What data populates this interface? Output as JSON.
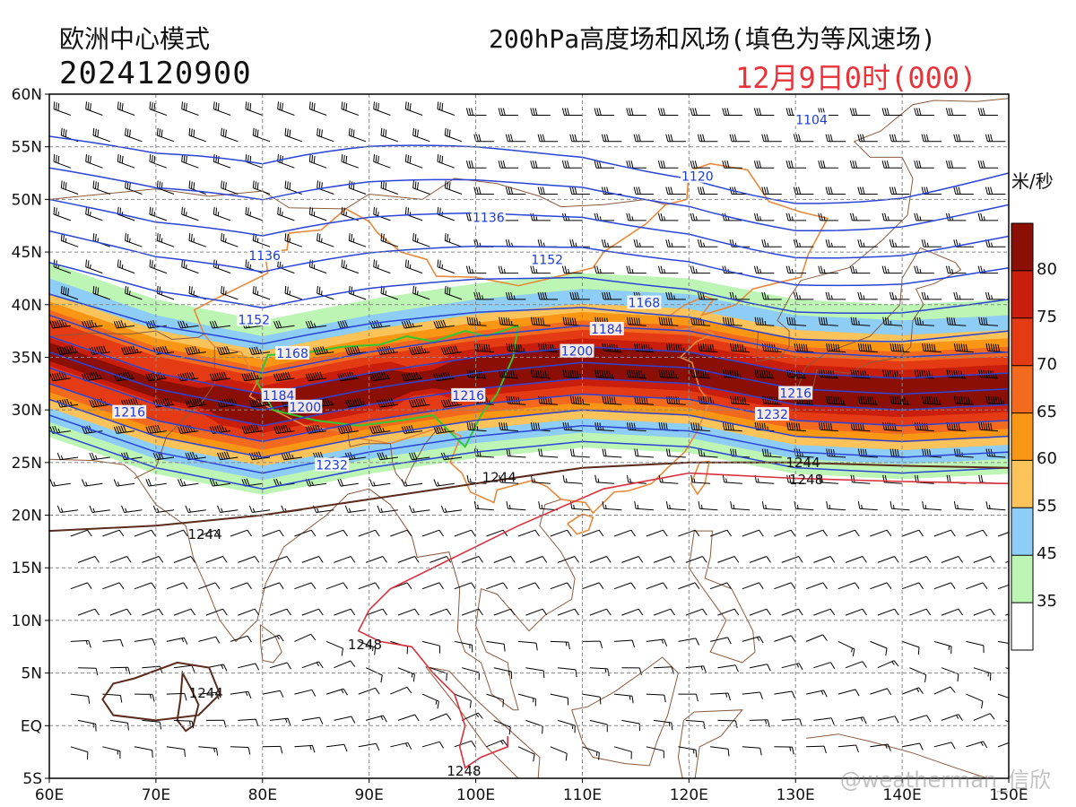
{
  "header": {
    "model": "欧洲中心模式",
    "run": "2024120900",
    "product": "200hPa高度场和风场(填色为等风速场)",
    "valid": "12月9日0时(000)"
  },
  "colorbar": {
    "unit": "米/秒",
    "levels": [
      "35",
      "45",
      "55",
      "60",
      "65",
      "70",
      "75",
      "80"
    ],
    "colors": [
      "#ffffff",
      "#bdf5b4",
      "#8ecdf6",
      "#fbc35a",
      "#f99614",
      "#f36a1e",
      "#e53b15",
      "#c81e0b",
      "#8c0f06"
    ]
  },
  "map": {
    "lon_ticks": [
      "60E",
      "70E",
      "80E",
      "90E",
      "100E",
      "110E",
      "120E",
      "130E",
      "140E",
      "150E"
    ],
    "lat_ticks": [
      "60N",
      "55N",
      "50N",
      "45N",
      "40N",
      "35N",
      "30N",
      "25N",
      "20N",
      "15N",
      "10N",
      "5N",
      "EQ",
      "5S"
    ],
    "contour_labels": [
      {
        "text": "1104",
        "lon": 131.5,
        "lat": 57.5,
        "color": "blue"
      },
      {
        "text": "1120",
        "lon": 120.8,
        "lat": 52.1,
        "color": "blue"
      },
      {
        "text": "1136",
        "lon": 101.2,
        "lat": 48.2,
        "color": "blue"
      },
      {
        "text": "1136",
        "lon": 80.2,
        "lat": 44.6,
        "color": "blue"
      },
      {
        "text": "1152",
        "lon": 106.7,
        "lat": 44.2,
        "color": "blue"
      },
      {
        "text": "1152",
        "lon": 79.2,
        "lat": 38.5,
        "color": "blue"
      },
      {
        "text": "1168",
        "lon": 82.8,
        "lat": 35.3,
        "color": "blue"
      },
      {
        "text": "1168",
        "lon": 115.8,
        "lat": 40.1,
        "color": "blue"
      },
      {
        "text": "1184",
        "lon": 112.3,
        "lat": 37.6,
        "color": "blue"
      },
      {
        "text": "1184",
        "lon": 81.5,
        "lat": 31.3,
        "color": "blue"
      },
      {
        "text": "1200",
        "lon": 109.5,
        "lat": 35.5,
        "color": "blue"
      },
      {
        "text": "1200",
        "lon": 84.0,
        "lat": 30.2,
        "color": "blue"
      },
      {
        "text": "1216",
        "lon": 99.3,
        "lat": 31.3,
        "color": "blue"
      },
      {
        "text": "1216",
        "lon": 130.0,
        "lat": 31.5,
        "color": "blue"
      },
      {
        "text": "1216",
        "lon": 67.5,
        "lat": 29.7,
        "color": "blue"
      },
      {
        "text": "1232",
        "lon": 127.8,
        "lat": 29.5,
        "color": "blue"
      },
      {
        "text": "1232",
        "lon": 86.5,
        "lat": 24.7,
        "color": "blue"
      },
      {
        "text": "1244",
        "lon": 102.2,
        "lat": 23.5,
        "color": "dark"
      },
      {
        "text": "1244",
        "lon": 130.7,
        "lat": 24.9,
        "color": "dark"
      },
      {
        "text": "1244",
        "lon": 74.6,
        "lat": 18.1,
        "color": "dark"
      },
      {
        "text": "1244",
        "lon": 74.7,
        "lat": 3.0,
        "color": "dark"
      },
      {
        "text": "1248",
        "lon": 131.0,
        "lat": 23.3,
        "color": "dark"
      },
      {
        "text": "1248",
        "lon": 89.6,
        "lat": 7.6,
        "color": "dark"
      },
      {
        "text": "1248",
        "lon": 98.9,
        "lat": -4.4,
        "color": "dark"
      }
    ]
  },
  "watermark": "@weatherman_信欣"
}
